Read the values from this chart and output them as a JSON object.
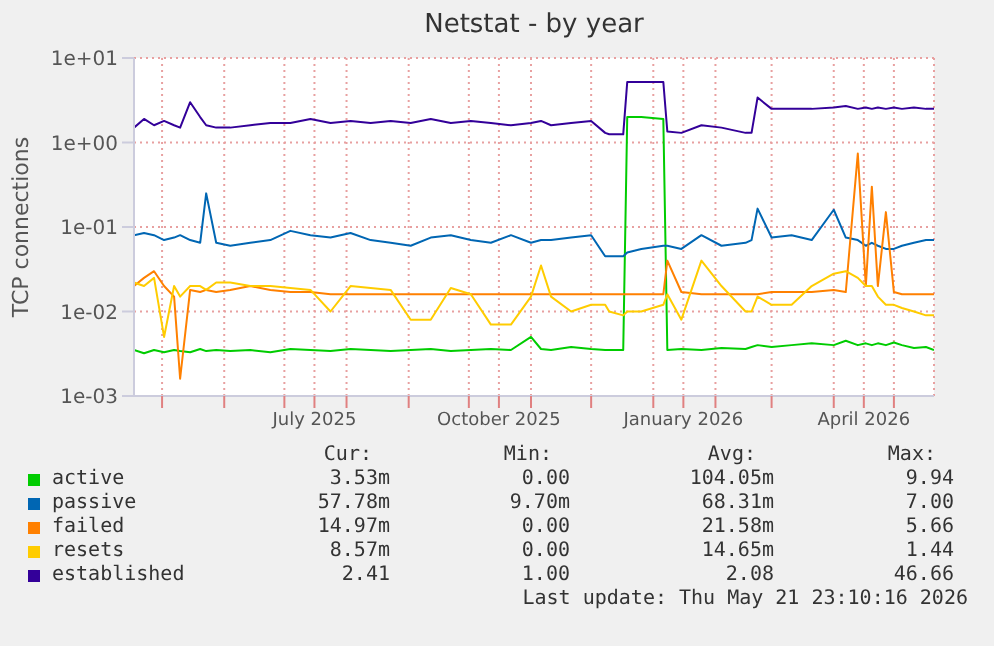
{
  "chart_data": {
    "type": "line",
    "title": "Netstat - by year",
    "ylabel": "TCP connections",
    "log": "y",
    "grid": true,
    "legend": "bottom",
    "xlim": [
      "2025-04-17",
      "2026-05-21"
    ],
    "xticks": [
      {
        "value": "2025-05-01",
        "label": null
      },
      {
        "value": "2025-06-01",
        "label": null
      },
      {
        "value": "2025-07-01",
        "label": null
      },
      {
        "value": "2025-07-16",
        "label": "July 2025"
      },
      {
        "value": "2025-08-01",
        "label": null
      },
      {
        "value": "2025-09-01",
        "label": null
      },
      {
        "value": "2025-10-01",
        "label": null
      },
      {
        "value": "2025-10-16",
        "label": "October 2025"
      },
      {
        "value": "2025-11-01",
        "label": null
      },
      {
        "value": "2025-12-01",
        "label": null
      },
      {
        "value": "2026-01-01",
        "label": null
      },
      {
        "value": "2026-01-16",
        "label": "January 2026"
      },
      {
        "value": "2026-02-01",
        "label": null
      },
      {
        "value": "2026-03-01",
        "label": null
      },
      {
        "value": "2026-04-01",
        "label": null
      },
      {
        "value": "2026-04-16",
        "label": "April 2026"
      },
      {
        "value": "2026-05-01",
        "label": null
      }
    ],
    "ylim": [
      0.001,
      10
    ],
    "yticks": [
      {
        "value": 0.001,
        "label": "1e-03"
      },
      {
        "value": 0.01,
        "label": "1e-02"
      },
      {
        "value": 0.1,
        "label": "1e-01"
      },
      {
        "value": 1,
        "label": "1e+00"
      },
      {
        "value": 10,
        "label": "1e+01"
      }
    ],
    "x": [
      "2025-04-17",
      "2025-04-22",
      "2025-04-27",
      "2025-05-02",
      "2025-05-07",
      "2025-05-10",
      "2025-05-15",
      "2025-05-20",
      "2025-05-23",
      "2025-05-28",
      "2025-06-04",
      "2025-06-14",
      "2025-06-24",
      "2025-07-04",
      "2025-07-14",
      "2025-07-24",
      "2025-08-03",
      "2025-08-13",
      "2025-08-23",
      "2025-09-02",
      "2025-09-12",
      "2025-09-22",
      "2025-10-02",
      "2025-10-12",
      "2025-10-22",
      "2025-11-01",
      "2025-11-06",
      "2025-11-11",
      "2025-11-21",
      "2025-12-01",
      "2025-12-08",
      "2025-12-10",
      "2025-12-17",
      "2025-12-19",
      "2025-12-26",
      "2026-01-06",
      "2026-01-08",
      "2026-01-15",
      "2026-01-25",
      "2026-02-04",
      "2026-02-16",
      "2026-02-19",
      "2026-02-22",
      "2026-03-01",
      "2026-03-11",
      "2026-03-21",
      "2026-04-01",
      "2026-04-07",
      "2026-04-13",
      "2026-04-17",
      "2026-04-20",
      "2026-04-23",
      "2026-04-27",
      "2026-05-01",
      "2026-05-05",
      "2026-05-11",
      "2026-05-17",
      "2026-05-21"
    ],
    "series": [
      {
        "name": "active",
        "color": "#00cc00",
        "values": [
          0.0035,
          0.0032,
          0.0035,
          0.0033,
          0.0035,
          0.0034,
          0.0033,
          0.0036,
          0.0034,
          0.0035,
          0.0034,
          0.0035,
          0.0033,
          0.0036,
          0.0035,
          0.0034,
          0.0036,
          0.0035,
          0.0034,
          0.0035,
          0.0036,
          0.0034,
          0.0035,
          0.0036,
          0.0035,
          0.005,
          0.0036,
          0.0035,
          0.0038,
          0.0036,
          0.0035,
          0.0035,
          0.0035,
          2.0,
          2.0,
          1.9,
          0.0035,
          0.0036,
          0.0035,
          0.0037,
          0.0036,
          0.0038,
          0.004,
          0.0038,
          0.004,
          0.0042,
          0.004,
          0.0045,
          0.004,
          0.0042,
          0.004,
          0.0042,
          0.004,
          0.0043,
          0.004,
          0.0037,
          0.0038,
          0.0035
        ]
      },
      {
        "name": "passive",
        "color": "#0066b3",
        "values": [
          0.08,
          0.085,
          0.08,
          0.07,
          0.075,
          0.08,
          0.07,
          0.065,
          0.25,
          0.065,
          0.06,
          0.065,
          0.07,
          0.09,
          0.08,
          0.075,
          0.085,
          0.07,
          0.065,
          0.06,
          0.075,
          0.08,
          0.07,
          0.065,
          0.08,
          0.065,
          0.07,
          0.07,
          0.075,
          0.08,
          0.045,
          0.045,
          0.045,
          0.05,
          0.055,
          0.06,
          0.06,
          0.055,
          0.08,
          0.06,
          0.065,
          0.07,
          0.165,
          0.075,
          0.08,
          0.07,
          0.16,
          0.075,
          0.07,
          0.06,
          0.065,
          0.06,
          0.055,
          0.055,
          0.06,
          0.065,
          0.07,
          0.07
        ]
      },
      {
        "name": "failed",
        "color": "#ff8000",
        "values": [
          0.02,
          0.025,
          0.03,
          0.02,
          0.015,
          0.0016,
          0.018,
          0.017,
          0.018,
          0.017,
          0.018,
          0.02,
          0.018,
          0.017,
          0.017,
          0.016,
          0.016,
          0.016,
          0.016,
          0.016,
          0.016,
          0.016,
          0.016,
          0.016,
          0.016,
          0.016,
          0.016,
          0.016,
          0.016,
          0.016,
          0.016,
          0.016,
          0.016,
          0.016,
          0.016,
          0.016,
          0.04,
          0.017,
          0.016,
          0.016,
          0.016,
          0.016,
          0.016,
          0.017,
          0.017,
          0.017,
          0.018,
          0.017,
          0.74,
          0.02,
          0.3,
          0.02,
          0.15,
          0.017,
          0.016,
          0.016,
          0.016,
          0.016
        ]
      },
      {
        "name": "resets",
        "color": "#ffcc00",
        "values": [
          0.022,
          0.02,
          0.025,
          0.005,
          0.02,
          0.015,
          0.02,
          0.02,
          0.018,
          0.022,
          0.022,
          0.02,
          0.02,
          0.019,
          0.018,
          0.01,
          0.02,
          0.019,
          0.018,
          0.008,
          0.008,
          0.019,
          0.016,
          0.007,
          0.007,
          0.015,
          0.035,
          0.015,
          0.01,
          0.012,
          0.012,
          0.01,
          0.009,
          0.01,
          0.01,
          0.012,
          0.016,
          0.008,
          0.04,
          0.02,
          0.01,
          0.01,
          0.015,
          0.012,
          0.012,
          0.02,
          0.028,
          0.03,
          0.025,
          0.02,
          0.02,
          0.015,
          0.012,
          0.012,
          0.011,
          0.01,
          0.009,
          0.009
        ]
      },
      {
        "name": "established",
        "color": "#330099",
        "values": [
          1.5,
          1.9,
          1.6,
          1.8,
          1.6,
          1.5,
          3.0,
          2.0,
          1.6,
          1.5,
          1.5,
          1.6,
          1.7,
          1.7,
          1.9,
          1.7,
          1.8,
          1.7,
          1.8,
          1.7,
          1.9,
          1.7,
          1.8,
          1.7,
          1.6,
          1.7,
          1.8,
          1.6,
          1.7,
          1.8,
          1.3,
          1.25,
          1.25,
          5.2,
          5.2,
          5.2,
          1.35,
          1.3,
          1.6,
          1.5,
          1.3,
          1.3,
          3.4,
          2.5,
          2.5,
          2.5,
          2.6,
          2.7,
          2.5,
          2.6,
          2.5,
          2.6,
          2.5,
          2.6,
          2.5,
          2.6,
          2.5,
          2.5
        ]
      }
    ],
    "annotations": [
      "Cur:",
      "Min:",
      "Avg:",
      "Max:",
      "3.53m",
      "0.00",
      "104.05m",
      "9.94",
      "57.78m",
      "9.70m",
      "68.31m",
      "7.00",
      "14.97m",
      "0.00",
      "21.58m",
      "5.66",
      "8.57m",
      "0.00",
      "14.65m",
      "1.44",
      "2.41",
      "1.00",
      "2.08",
      "46.66",
      "Last update: Thu May 21 23:10:16 2026"
    ]
  }
}
